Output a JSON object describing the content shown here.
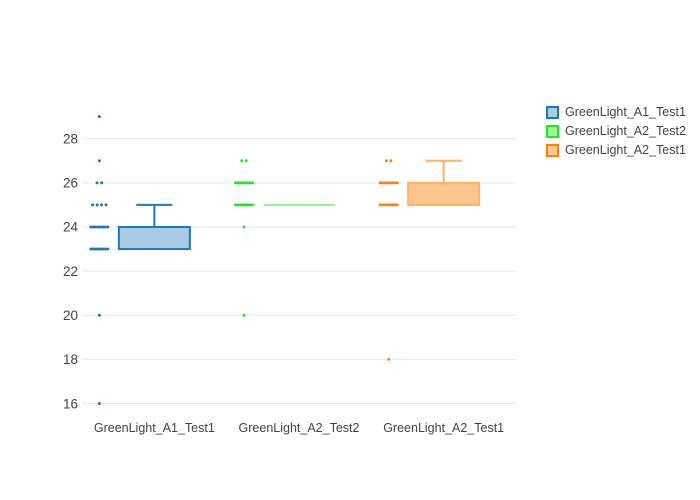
{
  "chart_data": {
    "type": "box",
    "title": "",
    "xlabel": "",
    "ylabel": "",
    "grid": true,
    "legend_position": "top-right",
    "yticks": [
      16,
      18,
      20,
      22,
      24,
      26,
      28
    ],
    "ylim": [
      15.4,
      30.0
    ],
    "categories": [
      "GreenLight_A1_Test1",
      "GreenLight_A2_Test2",
      "GreenLight_A2_Test1"
    ],
    "series": [
      {
        "name": "GreenLight_A1_Test1",
        "point_color": "#1f77b4",
        "line_color": "#1f77b4",
        "fill_color": "#a9cbe6",
        "box": {
          "q1": 23,
          "median": 24,
          "q3": 24,
          "whisker_low": 23,
          "whisker_high": 25
        },
        "points": [
          29,
          27,
          26,
          26,
          25,
          25,
          25,
          25,
          24,
          24,
          24,
          24,
          24,
          24,
          24,
          24,
          23,
          23,
          23,
          23,
          23,
          23,
          23,
          23,
          20,
          16
        ]
      },
      {
        "name": "GreenLight_A2_Test2",
        "point_color": "#1de91d",
        "line_color": "#8cf08c",
        "fill_color": "#9ef49e",
        "box": {
          "q1": 25,
          "median": 25,
          "q3": 25,
          "whisker_low": 25,
          "whisker_high": 25
        },
        "points": [
          27,
          27,
          26,
          26,
          26,
          26,
          26,
          26,
          26,
          26,
          25,
          25,
          25,
          25,
          25,
          25,
          25,
          25,
          24,
          20
        ]
      },
      {
        "name": "GreenLight_A2_Test1",
        "point_color": "#ff7f0e",
        "line_color": "#ffb266",
        "fill_color": "#ffc78f",
        "box": {
          "q1": 25,
          "median": 25,
          "q3": 26,
          "whisker_low": 25,
          "whisker_high": 27
        },
        "points": [
          27,
          27,
          26,
          26,
          26,
          26,
          26,
          26,
          26,
          26,
          25,
          25,
          25,
          25,
          25,
          25,
          25,
          25,
          18
        ]
      }
    ]
  },
  "colors": {
    "grid": "#e9e9e9",
    "tick_text": "#444444",
    "background": "#ffffff"
  }
}
